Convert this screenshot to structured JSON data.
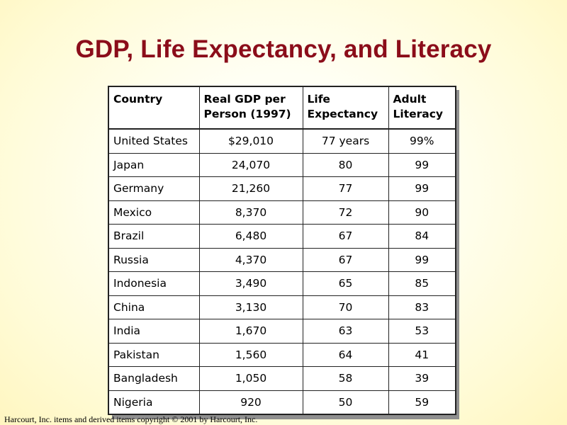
{
  "title": "GDP, Life Expectancy, and Literacy",
  "table": {
    "headers": {
      "country": "Country",
      "gdp_line1": "Real GDP per",
      "gdp_line2": "Person (1997)",
      "life_line1": "Life",
      "life_line2": "Expectancy",
      "lit_line1": "Adult",
      "lit_line2": "Literacy"
    },
    "rows": [
      {
        "country": "United States",
        "gdp": "$29,010",
        "life": "77 years",
        "literacy": "99%"
      },
      {
        "country": "Japan",
        "gdp": "24,070",
        "life": "80",
        "literacy": "99"
      },
      {
        "country": "Germany",
        "gdp": "21,260",
        "life": "77",
        "literacy": "99"
      },
      {
        "country": "Mexico",
        "gdp": "8,370",
        "life": "72",
        "literacy": "90"
      },
      {
        "country": "Brazil",
        "gdp": "6,480",
        "life": "67",
        "literacy": "84"
      },
      {
        "country": "Russia",
        "gdp": "4,370",
        "life": "67",
        "literacy": "99"
      },
      {
        "country": "Indonesia",
        "gdp": "3,490",
        "life": "65",
        "literacy": "85"
      },
      {
        "country": "China",
        "gdp": "3,130",
        "life": "70",
        "literacy": "83"
      },
      {
        "country": "India",
        "gdp": "1,670",
        "life": "63",
        "literacy": "53"
      },
      {
        "country": "Pakistan",
        "gdp": "1,560",
        "life": "64",
        "literacy": "41"
      },
      {
        "country": "Bangladesh",
        "gdp": "1,050",
        "life": "58",
        "literacy": "39"
      },
      {
        "country": "Nigeria",
        "gdp": "920",
        "life": "50",
        "literacy": "59"
      }
    ]
  },
  "footer": "Harcourt, Inc. items and derived items copyright © 2001 by Harcourt, Inc."
}
